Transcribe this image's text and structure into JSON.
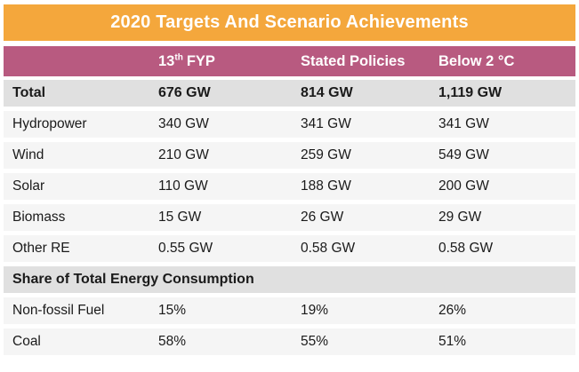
{
  "title": "2020 Targets And Scenario Achievements",
  "colors": {
    "banner_orange": "#F4A73C",
    "header_magenta": "#B85A80",
    "section_row_gray": "#E0E0E0",
    "data_row_gray": "#F5F5F5",
    "text_dark": "#1A1A1A",
    "text_white": "#FFFFFF"
  },
  "header": {
    "col1_base": "13",
    "col1_sup": "th",
    "col1_rest": "FYP",
    "col2": "Stated Policies",
    "col3": "Below 2 °C"
  },
  "chart_data": {
    "type": "table",
    "title": "2020 Targets And Scenario Achievements",
    "columns": [
      "",
      "13th FYP",
      "Stated Policies",
      "Below 2 °C"
    ],
    "rows": [
      {
        "label": "Total",
        "values": [
          "676 GW",
          "814 GW",
          "1,119 GW"
        ],
        "style": "total"
      },
      {
        "label": "Hydropower",
        "values": [
          "340 GW",
          "341 GW",
          "341 GW"
        ],
        "style": "data"
      },
      {
        "label": "Wind",
        "values": [
          "210 GW",
          "259 GW",
          "549 GW"
        ],
        "style": "data"
      },
      {
        "label": "Solar",
        "values": [
          "110 GW",
          "188 GW",
          "200 GW"
        ],
        "style": "data"
      },
      {
        "label": "Biomass",
        "values": [
          "15 GW",
          "26 GW",
          "29 GW"
        ],
        "style": "data"
      },
      {
        "label": "Other RE",
        "values": [
          "0.55 GW",
          "0.58 GW",
          "0.58 GW"
        ],
        "style": "data"
      },
      {
        "label": "Share of Total Energy Consumption",
        "values": [],
        "style": "section"
      },
      {
        "label": "Non-fossil Fuel",
        "values": [
          "15%",
          "19%",
          "26%"
        ],
        "style": "data"
      },
      {
        "label": "Coal",
        "values": [
          "58%",
          "55%",
          "51%"
        ],
        "style": "data"
      }
    ]
  }
}
